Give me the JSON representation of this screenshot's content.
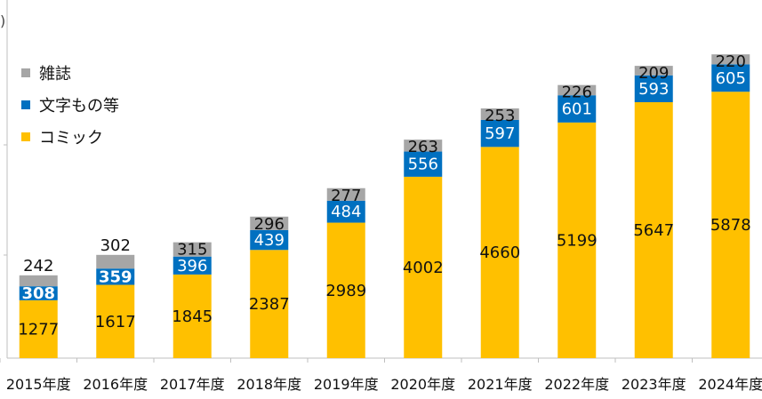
{
  "colors": {
    "comic": "#FFC000",
    "text": "#0070C0",
    "magazine": "#A6A6A6",
    "axis": "#BFBFBF"
  },
  "corner_mark": ")",
  "chart_data": {
    "type": "bar",
    "stacked": true,
    "categories": [
      "2015年度",
      "2016年度",
      "2017年度",
      "2018年度",
      "2019年度",
      "2020年度",
      "2021年度",
      "2022年度",
      "2023年度",
      "2024年度"
    ],
    "series": [
      {
        "name": "コミック",
        "color": "#FFC000",
        "values": [
          1277,
          1617,
          1845,
          2387,
          2989,
          4002,
          4660,
          5199,
          5647,
          5878
        ]
      },
      {
        "name": "文字もの等",
        "color": "#0070C0",
        "values": [
          308,
          359,
          396,
          439,
          484,
          556,
          597,
          601,
          593,
          605
        ]
      },
      {
        "name": "雑誌",
        "color": "#A6A6A6",
        "values": [
          242,
          302,
          315,
          296,
          277,
          263,
          253,
          226,
          209,
          220
        ]
      }
    ],
    "legend_order": [
      "雑誌",
      "文字もの等",
      "コミック"
    ],
    "legend_position": "top-left",
    "ylim": [
      0,
      7000
    ],
    "grid": false
  }
}
